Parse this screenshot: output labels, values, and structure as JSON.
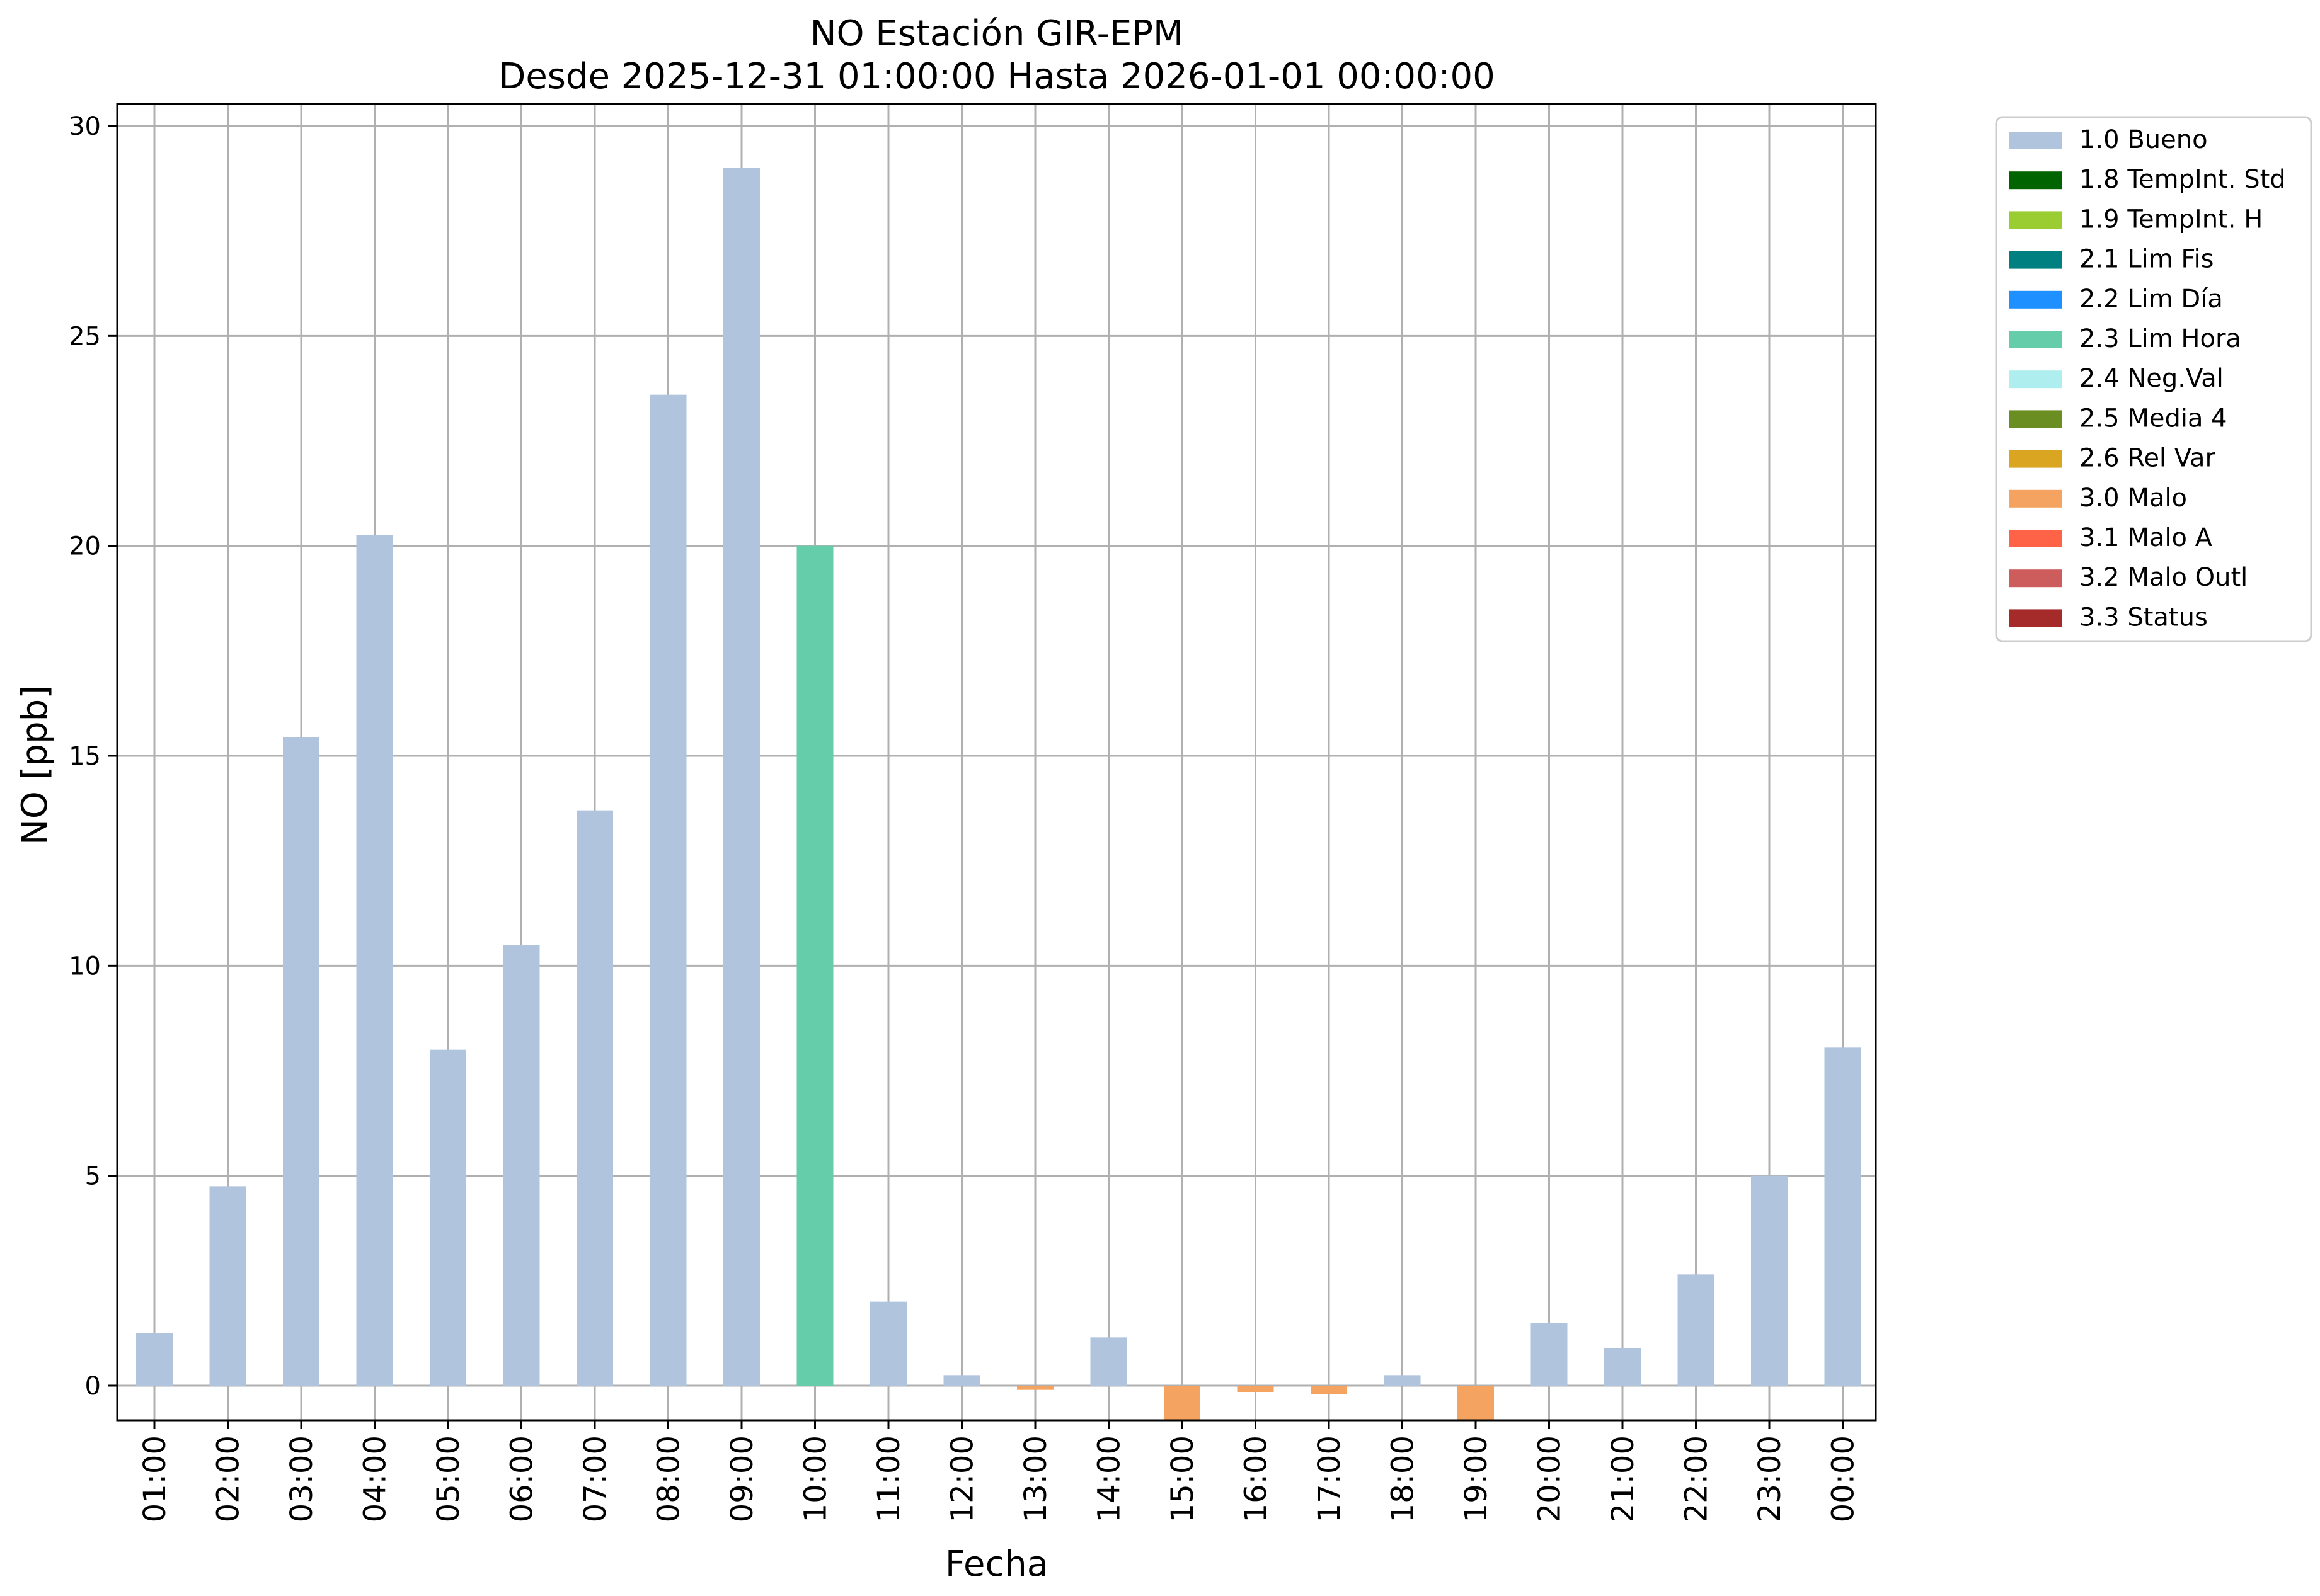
{
  "chart_data": {
    "type": "bar",
    "title": "NO Estación GIR-EPM",
    "subtitle": "Desde 2025-12-31 01:00:00 Hasta 2026-01-01 00:00:00",
    "xlabel": "Fecha",
    "ylabel": "NO [ppb]",
    "ylim": [
      -0.85,
      30.5
    ],
    "yticks": [
      0,
      5,
      10,
      15,
      20,
      25,
      30
    ],
    "grid": true,
    "legend_position": "outside-top-right",
    "categories": [
      "01:00",
      "02:00",
      "03:00",
      "04:00",
      "05:00",
      "06:00",
      "07:00",
      "08:00",
      "09:00",
      "10:00",
      "11:00",
      "12:00",
      "13:00",
      "14:00",
      "15:00",
      "16:00",
      "17:00",
      "18:00",
      "19:00",
      "20:00",
      "21:00",
      "22:00",
      "23:00",
      "00:00"
    ],
    "bars": [
      {
        "value": 1.25,
        "flag": "1.0 Bueno"
      },
      {
        "value": 4.75,
        "flag": "1.0 Bueno"
      },
      {
        "value": 15.45,
        "flag": "1.0 Bueno"
      },
      {
        "value": 20.25,
        "flag": "1.0 Bueno"
      },
      {
        "value": 8.0,
        "flag": "1.0 Bueno"
      },
      {
        "value": 10.5,
        "flag": "1.0 Bueno"
      },
      {
        "value": 13.7,
        "flag": "1.0 Bueno"
      },
      {
        "value": 23.6,
        "flag": "1.0 Bueno"
      },
      {
        "value": 29.0,
        "flag": "1.0 Bueno"
      },
      {
        "value": 20.0,
        "flag": "2.3 Lim Hora"
      },
      {
        "value": 2.0,
        "flag": "1.0 Bueno"
      },
      {
        "value": 0.25,
        "flag": "1.0 Bueno"
      },
      {
        "value": -0.1,
        "flag": "3.0 Malo"
      },
      {
        "value": 1.15,
        "flag": "1.0 Bueno"
      },
      {
        "value": -0.85,
        "flag": "3.0 Malo"
      },
      {
        "value": -0.15,
        "flag": "3.0 Malo"
      },
      {
        "value": -0.2,
        "flag": "3.0 Malo"
      },
      {
        "value": 0.25,
        "flag": "1.0 Bueno"
      },
      {
        "value": -0.85,
        "flag": "3.0 Malo"
      },
      {
        "value": 1.5,
        "flag": "1.0 Bueno"
      },
      {
        "value": 0.9,
        "flag": "1.0 Bueno"
      },
      {
        "value": 2.65,
        "flag": "1.0 Bueno"
      },
      {
        "value": 5.0,
        "flag": "1.0 Bueno"
      },
      {
        "value": 8.05,
        "flag": "1.0 Bueno"
      }
    ],
    "legend": [
      {
        "label": "1.0 Bueno",
        "color": "#b0c4de"
      },
      {
        "label": "1.8 TempInt. Std",
        "color": "#006400"
      },
      {
        "label": "1.9 TempInt. H",
        "color": "#9acd32"
      },
      {
        "label": "2.1 Lim Fis",
        "color": "#008080"
      },
      {
        "label": "2.2 Lim Día",
        "color": "#1e90ff"
      },
      {
        "label": "2.3 Lim Hora",
        "color": "#66cdaa"
      },
      {
        "label": "2.4 Neg.Val",
        "color": "#afeeee"
      },
      {
        "label": "2.5 Media 4",
        "color": "#6b8e23"
      },
      {
        "label": "2.6 Rel Var",
        "color": "#daa520"
      },
      {
        "label": "3.0 Malo",
        "color": "#f4a460"
      },
      {
        "label": "3.1 Malo A",
        "color": "#ff6347"
      },
      {
        "label": "3.2 Malo Outl",
        "color": "#cd5c5c"
      },
      {
        "label": "3.3 Status",
        "color": "#a52a2a"
      }
    ]
  }
}
